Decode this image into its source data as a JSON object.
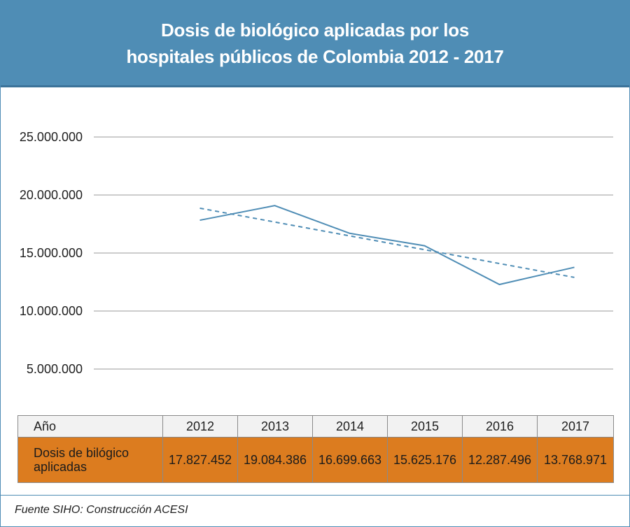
{
  "header": {
    "title_line1": "Dosis de biológico aplicadas por los",
    "title_line2": "hospitales públicos de Colombia 2012 - 2017"
  },
  "colors": {
    "header_bg": "#4f8db5",
    "line": "#4f8db5",
    "table_row": "#dc7c1f"
  },
  "chart_data": {
    "type": "line",
    "title": "Dosis de biológico aplicadas por los hospitales públicos de Colombia 2012 - 2017",
    "categories": [
      "2012",
      "2013",
      "2014",
      "2015",
      "2016",
      "2017"
    ],
    "series": [
      {
        "values": [
          17827452,
          19084386,
          16699663,
          15625176,
          12287496,
          13768971
        ],
        "style": "solid"
      }
    ],
    "trendline": {
      "type": "linear",
      "style": "dashed"
    },
    "ylim": [
      5000000,
      25000000
    ],
    "yticks": [
      5000000,
      10000000,
      15000000,
      20000000,
      25000000
    ],
    "ytick_labels": [
      "5.000.000",
      "10.000.000",
      "15.000.000",
      "20.000.000",
      "25.000.000"
    ],
    "grid": true,
    "xlabel": "",
    "ylabel": ""
  },
  "table": {
    "header_label": "Año",
    "row_label": "Dosis de bilógico aplicadas",
    "years": [
      "2012",
      "2013",
      "2014",
      "2015",
      "2016",
      "2017"
    ],
    "values": [
      "17.827.452",
      "19.084.386",
      "16.699.663",
      "15.625.176",
      "12.287.496",
      "13.768.971"
    ]
  },
  "source": "Fuente SIHO: Construcción ACESI"
}
